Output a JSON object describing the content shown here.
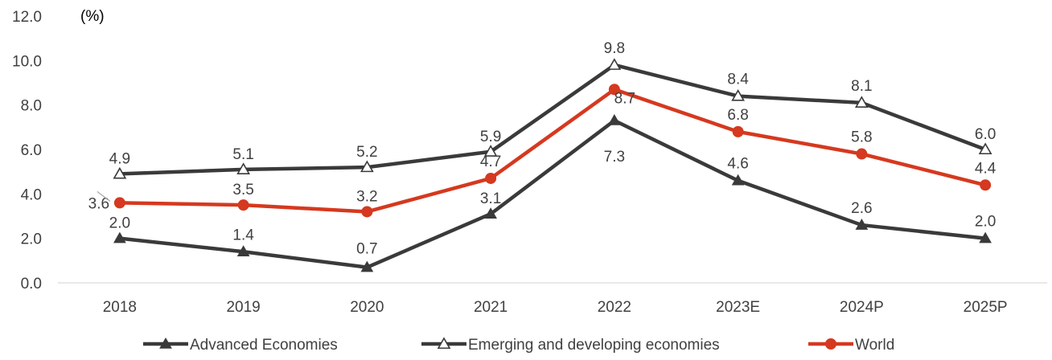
{
  "chart_data": {
    "type": "line",
    "unit_label": "(%)",
    "categories": [
      "2018",
      "2019",
      "2020",
      "2021",
      "2022",
      "2023E",
      "2024P",
      "2025P"
    ],
    "ylim": [
      0,
      12
    ],
    "yticks": [
      "0.0",
      "2.0",
      "4.0",
      "6.0",
      "8.0",
      "10.0",
      "12.0"
    ],
    "grid": false,
    "legend_position": "bottom",
    "series": [
      {
        "name": "Advanced Economies",
        "marker": "filled-triangle",
        "color": "#3a3a3a",
        "values": [
          2.0,
          1.4,
          0.7,
          3.1,
          7.3,
          4.6,
          2.6,
          2.0
        ],
        "labels": [
          "2.0",
          "1.4",
          "0.7",
          "3.1",
          "7.3",
          "4.6",
          "2.6",
          "2.0"
        ]
      },
      {
        "name": "Emerging and developing economies",
        "marker": "hollow-triangle",
        "color": "#3a3a3a",
        "values": [
          4.9,
          5.1,
          5.2,
          5.9,
          9.8,
          8.4,
          8.1,
          6.0
        ],
        "labels": [
          "4.9",
          "5.1",
          "5.2",
          "5.9",
          "9.8",
          "8.4",
          "8.1",
          "6.0"
        ]
      },
      {
        "name": "World",
        "marker": "circle",
        "color": "#d5391f",
        "values": [
          3.6,
          3.5,
          3.2,
          4.7,
          8.7,
          6.8,
          5.8,
          4.4
        ],
        "labels": [
          "3.6",
          "3.5",
          "3.2",
          "4.7",
          "8.7",
          "6.8",
          "5.8",
          "4.4"
        ]
      }
    ]
  }
}
